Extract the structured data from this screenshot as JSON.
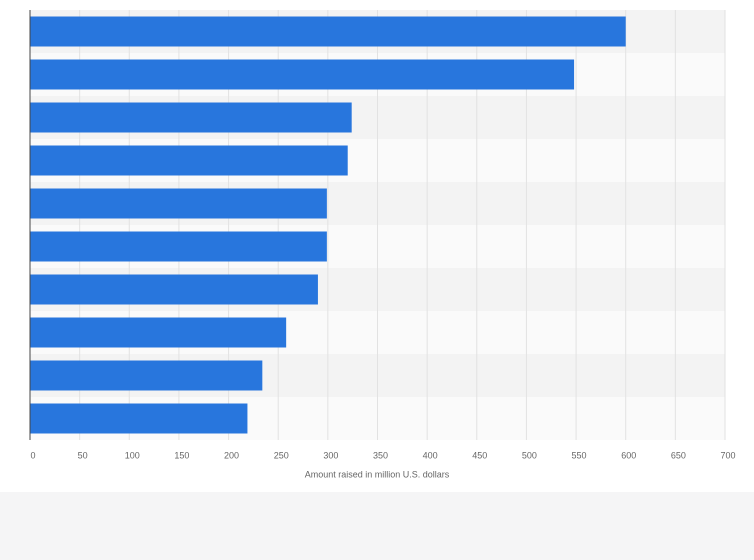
{
  "chart_data": {
    "type": "bar",
    "orientation": "horizontal",
    "x_label": "Amount raised in million U.S. dollars",
    "categories": [
      null,
      null,
      null,
      null,
      null,
      null,
      null,
      null,
      null,
      null
    ],
    "values": [
      600,
      548,
      324,
      320,
      299,
      299,
      290,
      258,
      234,
      219
    ],
    "color": "#2876dd",
    "xlim": [
      0,
      700
    ],
    "xticks": [
      0,
      50,
      100,
      150,
      200,
      250,
      300,
      350,
      400,
      450,
      500,
      550,
      600,
      650,
      700
    ],
    "grid": true
  }
}
